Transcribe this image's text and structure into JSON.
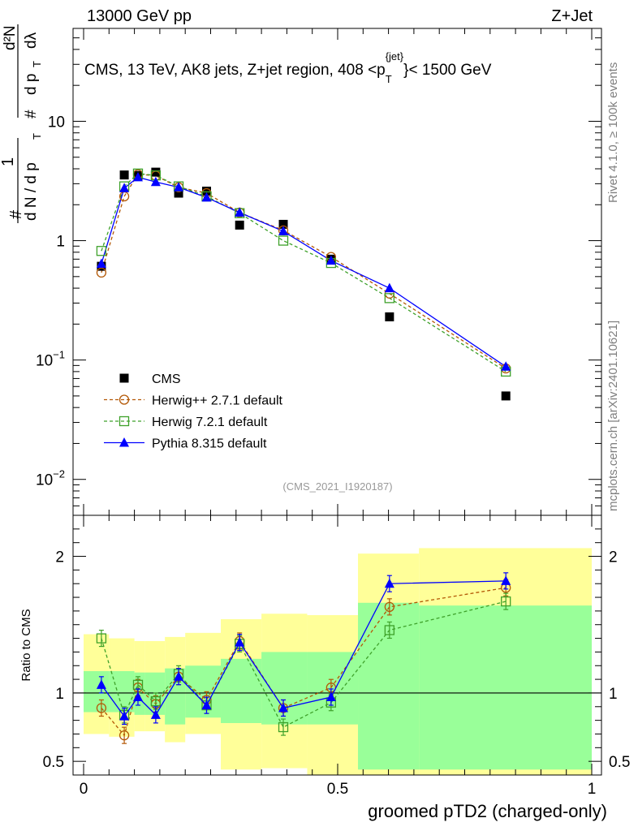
{
  "header": {
    "left": "13000 GeV pp",
    "right": "Z+Jet"
  },
  "side_text": {
    "rivet": "Rivet 4.1.0, ≥ 100k events",
    "mcplots": "mcplots.cern.ch [arXiv:2401.10621]"
  },
  "analysis_id": "(CMS_2021_I1920187)",
  "chart_data": [
    {
      "type": "line",
      "scale": "log",
      "title": "CMS, 13 TeV, AK8 jets, Z+jet region, 408 <p_T^{jet}< 1500 GeV",
      "title_parts": {
        "main": "CMS, 13 TeV, AK8 jets, Z+jet region, 408 <p",
        "sub": "T",
        "sup": "{jet}",
        "tail": "}< 1500 GeV"
      },
      "ylabel": "1/(dN/dp_T) d^2N/(dp_T dλ)",
      "ylabel_parts": {
        "hash": "#",
        "one": "1",
        "dN": "d N / d p",
        "T": "T",
        "d2N": "d²N",
        "dpdl": "d p",
        "dl": "dλ"
      },
      "ylim": [
        0.005,
        60
      ],
      "yticks": [
        {
          "v": 0.01,
          "base": "10",
          "exp": "−2"
        },
        {
          "v": 0.1,
          "base": "10",
          "exp": "−1"
        },
        {
          "v": 1,
          "base": "1",
          "exp": ""
        },
        {
          "v": 10,
          "base": "10",
          "exp": ""
        }
      ],
      "xlim": [
        0,
        1
      ],
      "x": [
        0.035,
        0.08,
        0.107,
        0.142,
        0.187,
        0.242,
        0.307,
        0.393,
        0.487,
        0.602,
        0.831
      ],
      "series": [
        {
          "name": "CMS",
          "marker": "square-filled",
          "color": "#000000",
          "values": [
            0.61,
            3.55,
            3.52,
            3.75,
            2.5,
            2.6,
            1.35,
            1.37,
            0.7,
            0.23,
            0.05
          ]
        },
        {
          "name": "Herwig++ 2.7.1 default",
          "marker": "circle-open",
          "color": "#b35806",
          "dash": true,
          "values": [
            0.54,
            2.35,
            3.6,
            3.5,
            2.8,
            2.5,
            1.72,
            1.22,
            0.73,
            0.36,
            0.085
          ]
        },
        {
          "name": "Herwig 7.2.1 default",
          "marker": "square-open",
          "color": "#3ea12a",
          "dash": true,
          "values": [
            0.82,
            2.85,
            3.65,
            3.52,
            2.85,
            2.35,
            1.7,
            1.0,
            0.65,
            0.33,
            0.08
          ]
        },
        {
          "name": "Pythia 8.315 default",
          "marker": "triangle-filled",
          "color": "#0000ff",
          "values": [
            0.64,
            2.75,
            3.4,
            3.1,
            2.8,
            2.3,
            1.72,
            1.2,
            0.68,
            0.4,
            0.088
          ]
        }
      ]
    },
    {
      "type": "line",
      "ylabel": "Ratio to CMS",
      "xlabel": "groomed pTD2 (charged-only)",
      "ylim": [
        0.4,
        2.3
      ],
      "yticks": [
        {
          "v": 0.5,
          "label": "0.5"
        },
        {
          "v": 1,
          "label": "1"
        },
        {
          "v": 2,
          "label": "2"
        }
      ],
      "xticks": [
        {
          "v": 0,
          "label": "0"
        },
        {
          "v": 0.5,
          "label": "0.5"
        },
        {
          "v": 1,
          "label": "1"
        }
      ],
      "bin_edges": [
        0,
        0.05,
        0.1,
        0.12,
        0.16,
        0.2,
        0.27,
        0.35,
        0.44,
        0.54,
        0.66,
        1.0
      ],
      "band_outer": [
        [
          0.7,
          1.43
        ],
        [
          0.68,
          1.4
        ],
        [
          0.72,
          1.38
        ],
        [
          0.72,
          1.38
        ],
        [
          0.64,
          1.41
        ],
        [
          0.7,
          1.44
        ],
        [
          0.44,
          1.54
        ],
        [
          0.45,
          1.58
        ],
        [
          0.38,
          1.57
        ],
        [
          0.34,
          2.02
        ],
        [
          0.34,
          2.06
        ]
      ],
      "band_inner": [
        [
          0.86,
          1.16
        ],
        [
          0.86,
          1.16
        ],
        [
          0.84,
          1.15
        ],
        [
          0.84,
          1.15
        ],
        [
          0.77,
          1.18
        ],
        [
          0.82,
          1.2
        ],
        [
          0.78,
          1.25
        ],
        [
          0.77,
          1.3
        ],
        [
          0.77,
          1.3
        ],
        [
          0.44,
          1.66
        ],
        [
          0.44,
          1.64
        ]
      ],
      "x": [
        0.035,
        0.08,
        0.107,
        0.142,
        0.187,
        0.242,
        0.307,
        0.393,
        0.487,
        0.602,
        0.831
      ],
      "series": [
        {
          "name": "Herwig++ 2.7.1 default",
          "color": "#b35806",
          "marker": "circle-open",
          "dash": true,
          "values": [
            0.89,
            0.69,
            1.04,
            0.92,
            1.12,
            0.95,
            1.38,
            0.89,
            1.04,
            1.63,
            1.77
          ]
        },
        {
          "name": "Herwig 7.2.1 default",
          "color": "#3ea12a",
          "marker": "square-open",
          "dash": true,
          "values": [
            1.4,
            0.84,
            1.06,
            0.94,
            1.14,
            0.91,
            1.36,
            0.75,
            0.93,
            1.46,
            1.67
          ]
        },
        {
          "name": "Pythia 8.315 default",
          "color": "#0000ff",
          "marker": "triangle-filled",
          "dash": false,
          "values": [
            1.06,
            0.83,
            0.97,
            0.84,
            1.12,
            0.91,
            1.37,
            0.89,
            0.97,
            1.8,
            1.82
          ]
        }
      ]
    }
  ]
}
